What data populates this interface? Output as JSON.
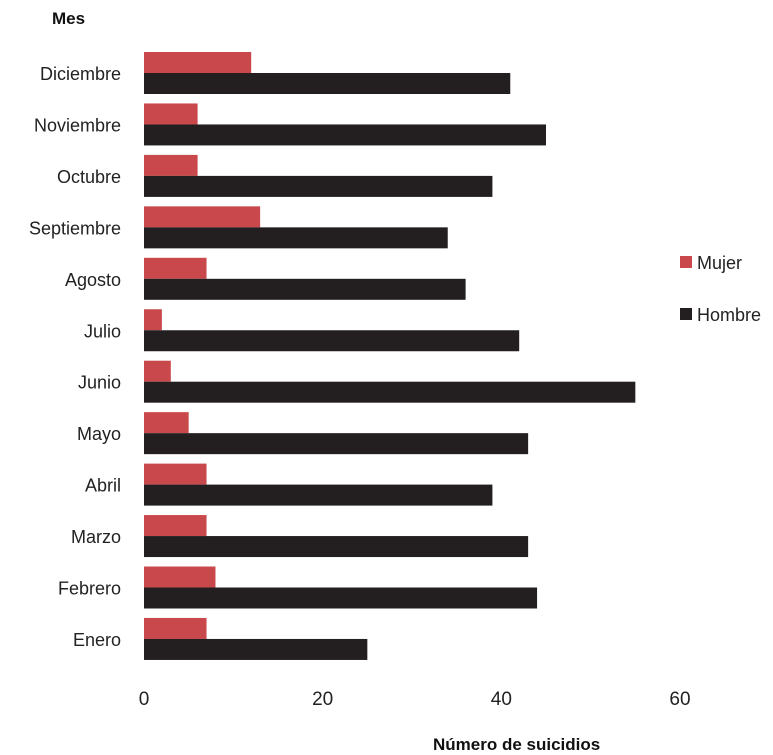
{
  "chart_data": {
    "type": "bar",
    "orientation": "horizontal",
    "categories": [
      "Enero",
      "Febrero",
      "Marzo",
      "Abril",
      "Mayo",
      "Junio",
      "Julio",
      "Agosto",
      "Septiembre",
      "Octubre",
      "Noviembre",
      "Diciembre"
    ],
    "series": [
      {
        "name": "Mujer",
        "color": "#c9484b",
        "values": [
          7,
          8,
          7,
          7,
          5,
          3,
          2,
          7,
          13,
          6,
          6,
          12
        ]
      },
      {
        "name": "Hombre",
        "color": "#231f20",
        "values": [
          25,
          44,
          43,
          39,
          43,
          55,
          42,
          36,
          34,
          39,
          45,
          41
        ]
      }
    ],
    "xlabel": "Número de suicidios",
    "ylabel": "Mes",
    "xlim": [
      0,
      60
    ],
    "xticks": [
      "0",
      "20",
      "40",
      "60"
    ],
    "grid": false,
    "legend_position": "right"
  }
}
